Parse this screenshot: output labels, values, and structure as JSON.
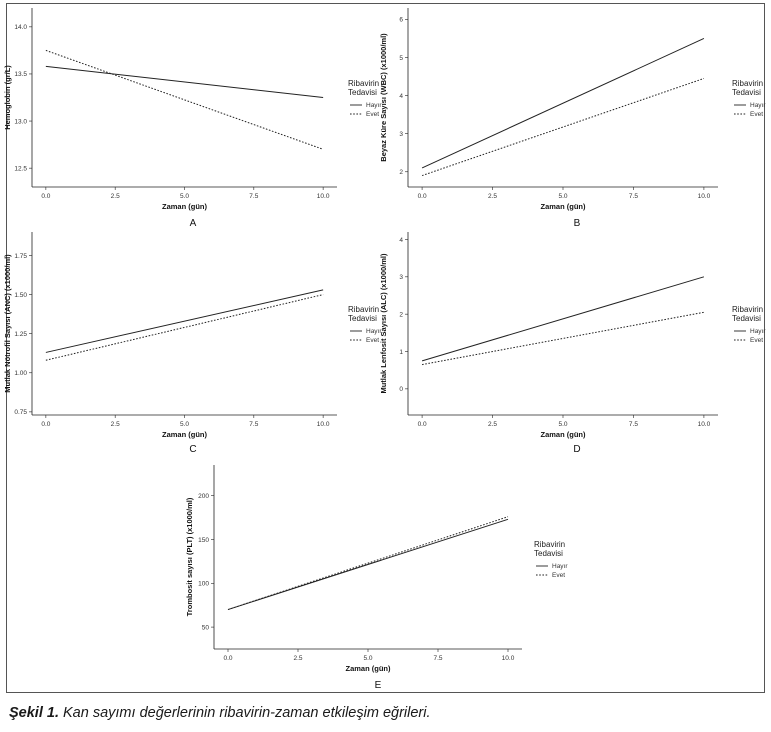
{
  "caption": {
    "label": "Şekil 1.",
    "text": " Kan sayımı değerlerinin ribavirin-zaman etkileşim eğrileri."
  },
  "legend": {
    "title_line1": "Ribavirin",
    "title_line2": "Tedavisi",
    "items": [
      "Hayır",
      "Evet"
    ]
  },
  "chart_data": [
    {
      "type": "line",
      "panel": "A",
      "xlabel": "Zaman (gün)",
      "ylabel": "Hemoglobin (gr/L)",
      "xlim": [
        -0.5,
        10.5
      ],
      "ylim": [
        12.3,
        14.2
      ],
      "xticks": [
        "0.0",
        "2.5",
        "5.0",
        "7.5",
        "10.0"
      ],
      "yticks": [
        "12.5",
        "13.0",
        "13.5",
        "14.0"
      ],
      "series": [
        {
          "name": "Hayır",
          "x": [
            0,
            10
          ],
          "y": [
            13.58,
            13.25
          ],
          "dash": "solid"
        },
        {
          "name": "Evet",
          "x": [
            0,
            10
          ],
          "y": [
            13.75,
            12.7
          ],
          "dash": "dotted"
        }
      ]
    },
    {
      "type": "line",
      "panel": "B",
      "xlabel": "Zaman (gün)",
      "ylabel": "Beyaz Küre Sayısı (WBC) (x1000/ml)",
      "xlim": [
        -0.5,
        10.5
      ],
      "ylim": [
        1.6,
        6.3
      ],
      "xticks": [
        "0.0",
        "2.5",
        "5.0",
        "7.5",
        "10.0"
      ],
      "yticks": [
        "2",
        "3",
        "4",
        "5",
        "6"
      ],
      "series": [
        {
          "name": "Hayır",
          "x": [
            0,
            10
          ],
          "y": [
            2.1,
            5.5
          ],
          "dash": "solid"
        },
        {
          "name": "Evet",
          "x": [
            0,
            10
          ],
          "y": [
            1.9,
            4.45
          ],
          "dash": "dotted"
        }
      ]
    },
    {
      "type": "line",
      "panel": "C",
      "xlabel": "Zaman (gün)",
      "ylabel": "Mutlak Nötrofil Sayısı (ANC) (x1000/ml)",
      "xlim": [
        -0.5,
        10.5
      ],
      "ylim": [
        0.73,
        1.9
      ],
      "xticks": [
        "0.0",
        "2.5",
        "5.0",
        "7.5",
        "10.0"
      ],
      "yticks": [
        "0.75",
        "1.00",
        "1.25",
        "1.50",
        "1.75"
      ],
      "series": [
        {
          "name": "Hayır",
          "x": [
            0,
            10
          ],
          "y": [
            1.13,
            1.53
          ],
          "dash": "solid"
        },
        {
          "name": "Evet",
          "x": [
            0,
            10
          ],
          "y": [
            1.08,
            1.5
          ],
          "dash": "dotted"
        }
      ]
    },
    {
      "type": "line",
      "panel": "D",
      "xlabel": "Zaman (gün)",
      "ylabel": "Mutlak Lenfosit Sayısı (ALC) (x1000/ml)",
      "xlim": [
        -0.5,
        10.5
      ],
      "ylim": [
        -0.7,
        4.2
      ],
      "xticks": [
        "0.0",
        "2.5",
        "5.0",
        "7.5",
        "10.0"
      ],
      "yticks": [
        "0",
        "1",
        "2",
        "3",
        "4"
      ],
      "series": [
        {
          "name": "Hayır",
          "x": [
            0,
            10
          ],
          "y": [
            0.75,
            3.0
          ],
          "dash": "solid"
        },
        {
          "name": "Evet",
          "x": [
            0,
            10
          ],
          "y": [
            0.65,
            2.05
          ],
          "dash": "dotted"
        }
      ]
    },
    {
      "type": "line",
      "panel": "E",
      "xlabel": "Zaman (gün)",
      "ylabel": "Trombosit sayısı (PLT) (x1000/ml)",
      "xlim": [
        -0.5,
        10.5
      ],
      "ylim": [
        25,
        235
      ],
      "xticks": [
        "0.0",
        "2.5",
        "5.0",
        "7.5",
        "10.0"
      ],
      "yticks": [
        "50",
        "100",
        "150",
        "200"
      ],
      "series": [
        {
          "name": "Hayır",
          "x": [
            0,
            10
          ],
          "y": [
            70,
            173
          ],
          "dash": "solid"
        },
        {
          "name": "Evet",
          "x": [
            0,
            10
          ],
          "y": [
            70,
            176
          ],
          "dash": "dotted"
        }
      ]
    }
  ]
}
